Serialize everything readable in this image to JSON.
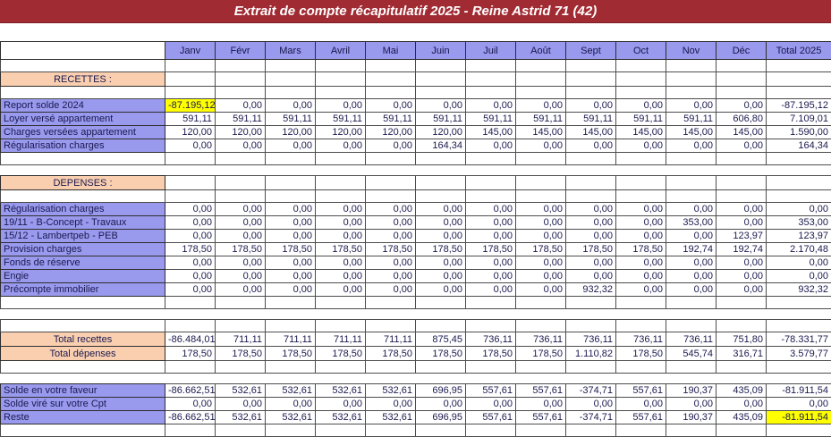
{
  "title": "Extrait de compte récapitulatif 2025 - Reine Astrid 71 (42)",
  "colors": {
    "title_bar": "#A12B33",
    "title_text": "#FFFFFF",
    "header_fill": "#9999EE",
    "row_label_fill": "#9999EE",
    "section_fill": "#F9CFB0",
    "highlight_fill": "#FFFF00",
    "grid_line": "#4D4D4D",
    "cell_text": "#1A1A4F"
  },
  "table": {
    "columns": [
      "Janv",
      "Févr",
      "Mars",
      "Avril",
      "Mai",
      "Juin",
      "Juil",
      "Août",
      "Sept",
      "Oct",
      "Nov",
      "Déc",
      "Total 2025"
    ],
    "rows": [
      {
        "type": "empty"
      },
      {
        "type": "section",
        "name": "row-recettes-header",
        "label": "RECETTES :"
      },
      {
        "type": "empty"
      },
      {
        "type": "data",
        "name": "row-report-solde-2024",
        "label": "Report solde 2024",
        "values": [
          "-87.195,12",
          "0,00",
          "0,00",
          "0,00",
          "0,00",
          "0,00",
          "0,00",
          "0,00",
          "0,00",
          "0,00",
          "0,00",
          "0,00",
          "-87.195,12"
        ],
        "highlight": [
          0
        ]
      },
      {
        "type": "data",
        "name": "row-loyer-verse-appartement",
        "label": "Loyer versé appartement",
        "values": [
          "591,11",
          "591,11",
          "591,11",
          "591,11",
          "591,11",
          "591,11",
          "591,11",
          "591,11",
          "591,11",
          "591,11",
          "591,11",
          "606,80",
          "7.109,01"
        ]
      },
      {
        "type": "data",
        "name": "row-charges-versees-appartement",
        "label": "Charges versées appartement",
        "values": [
          "120,00",
          "120,00",
          "120,00",
          "120,00",
          "120,00",
          "120,00",
          "145,00",
          "145,00",
          "145,00",
          "145,00",
          "145,00",
          "145,00",
          "1.590,00"
        ]
      },
      {
        "type": "data",
        "name": "row-regularisation-charges-recettes",
        "label": "Régularisation charges",
        "values": [
          "0,00",
          "0,00",
          "0,00",
          "0,00",
          "0,00",
          "164,34",
          "0,00",
          "0,00",
          "0,00",
          "0,00",
          "0,00",
          "0,00",
          "164,34"
        ]
      },
      {
        "type": "empty"
      },
      {
        "type": "gap"
      },
      {
        "type": "section",
        "name": "row-depenses-header",
        "label": "DEPENSES :"
      },
      {
        "type": "empty"
      },
      {
        "type": "data",
        "name": "row-regularisation-charges-depenses",
        "label": "Régularisation charges",
        "values": [
          "0,00",
          "0,00",
          "0,00",
          "0,00",
          "0,00",
          "0,00",
          "0,00",
          "0,00",
          "0,00",
          "0,00",
          "0,00",
          "0,00",
          "0,00"
        ]
      },
      {
        "type": "data",
        "name": "row-b-concept-travaux",
        "label": "19/11 - B-Concept - Travaux",
        "values": [
          "0,00",
          "0,00",
          "0,00",
          "0,00",
          "0,00",
          "0,00",
          "0,00",
          "0,00",
          "0,00",
          "0,00",
          "353,00",
          "0,00",
          "353,00"
        ]
      },
      {
        "type": "data",
        "name": "row-lambertpeb-peb",
        "label": "15/12 - Lambertpeb - PEB",
        "values": [
          "0,00",
          "0,00",
          "0,00",
          "0,00",
          "0,00",
          "0,00",
          "0,00",
          "0,00",
          "0,00",
          "0,00",
          "0,00",
          "123,97",
          "123,97"
        ]
      },
      {
        "type": "data",
        "name": "row-provision-charges",
        "label": "Provision charges",
        "values": [
          "178,50",
          "178,50",
          "178,50",
          "178,50",
          "178,50",
          "178,50",
          "178,50",
          "178,50",
          "178,50",
          "178,50",
          "192,74",
          "192,74",
          "2.170,48"
        ]
      },
      {
        "type": "data",
        "name": "row-fonds-de-reserve",
        "label": "Fonds de réserve",
        "values": [
          "0,00",
          "0,00",
          "0,00",
          "0,00",
          "0,00",
          "0,00",
          "0,00",
          "0,00",
          "0,00",
          "0,00",
          "0,00",
          "0,00",
          "0,00"
        ]
      },
      {
        "type": "data",
        "name": "row-engie",
        "label": "Engie",
        "values": [
          "0,00",
          "0,00",
          "0,00",
          "0,00",
          "0,00",
          "0,00",
          "0,00",
          "0,00",
          "0,00",
          "0,00",
          "0,00",
          "0,00",
          "0,00"
        ]
      },
      {
        "type": "data",
        "name": "row-precompte-immobilier",
        "label": "Précompte immobilier",
        "values": [
          "0,00",
          "0,00",
          "0,00",
          "0,00",
          "0,00",
          "0,00",
          "0,00",
          "0,00",
          "932,32",
          "0,00",
          "0,00",
          "0,00",
          "932,32"
        ]
      },
      {
        "type": "empty"
      },
      {
        "type": "gap"
      },
      {
        "type": "empty"
      },
      {
        "type": "total",
        "name": "row-total-recettes",
        "label": "Total recettes",
        "values": [
          "-86.484,01",
          "711,11",
          "711,11",
          "711,11",
          "711,11",
          "875,45",
          "736,11",
          "736,11",
          "736,11",
          "736,11",
          "736,11",
          "751,80",
          "-78.331,77"
        ]
      },
      {
        "type": "total",
        "name": "row-total-depenses",
        "label": "Total dépenses",
        "values": [
          "178,50",
          "178,50",
          "178,50",
          "178,50",
          "178,50",
          "178,50",
          "178,50",
          "178,50",
          "1.110,82",
          "178,50",
          "545,74",
          "316,71",
          "3.579,77"
        ]
      },
      {
        "type": "empty"
      },
      {
        "type": "gap"
      },
      {
        "type": "data",
        "name": "row-solde-en-votre-faveur",
        "label": "Solde en votre faveur",
        "values": [
          "-86.662,51",
          "532,61",
          "532,61",
          "532,61",
          "532,61",
          "696,95",
          "557,61",
          "557,61",
          "-374,71",
          "557,61",
          "190,37",
          "435,09",
          "-81.911,54"
        ]
      },
      {
        "type": "data",
        "name": "row-solde-vire-sur-votre-cpt",
        "label": "Solde viré sur votre Cpt",
        "values": [
          "0,00",
          "0,00",
          "0,00",
          "0,00",
          "0,00",
          "0,00",
          "0,00",
          "0,00",
          "0,00",
          "0,00",
          "0,00",
          "0,00",
          "0,00"
        ]
      },
      {
        "type": "data",
        "name": "row-reste",
        "label": "Reste",
        "values": [
          "-86.662,51",
          "532,61",
          "532,61",
          "532,61",
          "532,61",
          "696,95",
          "557,61",
          "557,61",
          "-374,71",
          "557,61",
          "190,37",
          "435,09",
          "-81.911,54"
        ],
        "highlight": [
          12
        ]
      },
      {
        "type": "empty"
      }
    ]
  }
}
